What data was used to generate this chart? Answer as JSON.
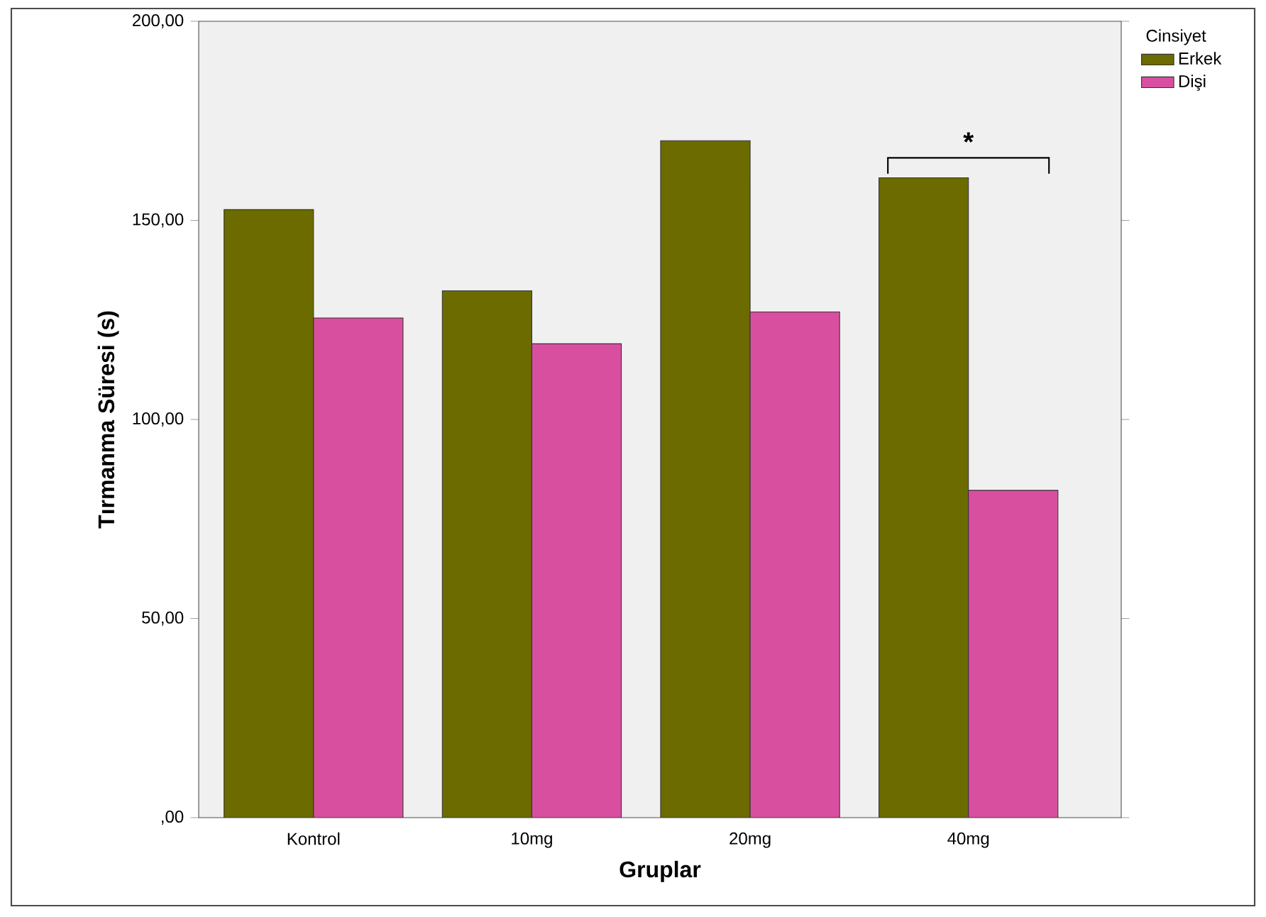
{
  "chart_data": {
    "type": "bar",
    "xlabel": "Gruplar",
    "ylabel": "Tırmanma Süresi (s)",
    "legend_title": "Cinsiyet",
    "categories": [
      "Kontrol",
      "10mg",
      "20mg",
      "40mg"
    ],
    "series": [
      {
        "name": "Erkek",
        "color": "#6b6b00",
        "values": [
          152.7,
          132.3,
          170,
          160.7
        ]
      },
      {
        "name": "Dişi",
        "color": "#d94fa0",
        "values": [
          125.5,
          119,
          127,
          82.2
        ]
      }
    ],
    "ylim": [
      0,
      200
    ],
    "yticks": [
      {
        "value": 0,
        "label": ",00"
      },
      {
        "value": 50,
        "label": "50,00"
      },
      {
        "value": 100,
        "label": "100,00"
      },
      {
        "value": 150,
        "label": "150,00"
      },
      {
        "value": 200,
        "label": "200,00"
      }
    ],
    "legend": "right",
    "annotations": [
      "*"
    ]
  }
}
